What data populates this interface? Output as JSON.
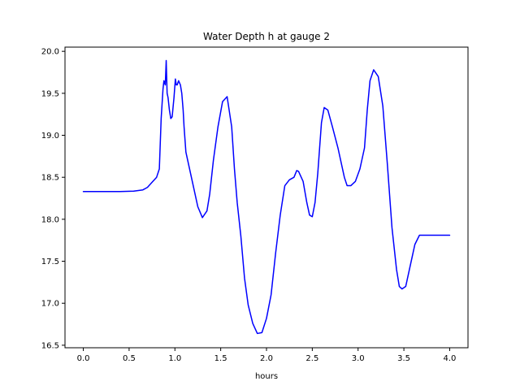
{
  "chart_data": {
    "type": "line",
    "title": "Water Depth h at gauge 2",
    "xlabel": "hours",
    "ylabel": "",
    "xlim": [
      -0.2,
      4.2
    ],
    "ylim": [
      16.47,
      20.05
    ],
    "xticks": [
      0.0,
      0.5,
      1.0,
      1.5,
      2.0,
      2.5,
      3.0,
      3.5,
      4.0
    ],
    "xtick_labels": [
      "0.0",
      "0.5",
      "1.0",
      "1.5",
      "2.0",
      "2.5",
      "3.0",
      "3.5",
      "4.0"
    ],
    "yticks": [
      16.5,
      17.0,
      17.5,
      18.0,
      18.5,
      19.0,
      19.5,
      20.0
    ],
    "ytick_labels": [
      "16.5",
      "17.0",
      "17.5",
      "18.0",
      "18.5",
      "19.0",
      "19.5",
      "20.0"
    ],
    "grid": false,
    "series": [
      {
        "color": "#0000ff",
        "x": [
          0.0,
          0.05,
          0.2,
          0.4,
          0.55,
          0.65,
          0.7,
          0.75,
          0.8,
          0.83,
          0.85,
          0.87,
          0.88,
          0.895,
          0.905,
          0.915,
          0.925,
          0.94,
          0.955,
          0.97,
          0.99,
          1.005,
          1.015,
          1.025,
          1.04,
          1.06,
          1.075,
          1.09,
          1.1,
          1.12,
          1.15,
          1.2,
          1.25,
          1.3,
          1.35,
          1.38,
          1.42,
          1.47,
          1.52,
          1.57,
          1.62,
          1.65,
          1.68,
          1.72,
          1.76,
          1.8,
          1.85,
          1.9,
          1.95,
          2.0,
          2.05,
          2.1,
          2.15,
          2.2,
          2.25,
          2.3,
          2.33,
          2.35,
          2.4,
          2.44,
          2.47,
          2.5,
          2.53,
          2.56,
          2.58,
          2.6,
          2.63,
          2.67,
          2.72,
          2.78,
          2.85,
          2.88,
          2.92,
          2.97,
          3.02,
          3.07,
          3.1,
          3.13,
          3.17,
          3.22,
          3.27,
          3.32,
          3.37,
          3.42,
          3.45,
          3.48,
          3.52,
          3.57,
          3.62,
          3.67,
          3.72,
          3.77,
          3.82,
          3.87,
          3.92,
          3.97,
          4.0
        ],
        "y": [
          18.33,
          18.33,
          18.33,
          18.33,
          18.335,
          18.35,
          18.38,
          18.44,
          18.5,
          18.6,
          19.2,
          19.55,
          19.65,
          19.6,
          19.89,
          19.5,
          19.45,
          19.3,
          19.2,
          19.22,
          19.45,
          19.67,
          19.6,
          19.6,
          19.65,
          19.6,
          19.5,
          19.3,
          19.1,
          18.8,
          18.65,
          18.4,
          18.15,
          18.02,
          18.1,
          18.3,
          18.7,
          19.1,
          19.4,
          19.46,
          19.1,
          18.6,
          18.2,
          17.8,
          17.3,
          16.98,
          16.76,
          16.64,
          16.65,
          16.82,
          17.1,
          17.6,
          18.05,
          18.4,
          18.47,
          18.5,
          18.58,
          18.57,
          18.45,
          18.2,
          18.05,
          18.03,
          18.2,
          18.55,
          18.85,
          19.15,
          19.33,
          19.3,
          19.1,
          18.85,
          18.5,
          18.4,
          18.4,
          18.45,
          18.6,
          18.85,
          19.3,
          19.65,
          19.78,
          19.7,
          19.35,
          18.65,
          17.9,
          17.4,
          17.2,
          17.17,
          17.2,
          17.45,
          17.7,
          17.81,
          17.81,
          17.81,
          17.81,
          17.81,
          17.81,
          17.81,
          17.81
        ]
      }
    ]
  }
}
